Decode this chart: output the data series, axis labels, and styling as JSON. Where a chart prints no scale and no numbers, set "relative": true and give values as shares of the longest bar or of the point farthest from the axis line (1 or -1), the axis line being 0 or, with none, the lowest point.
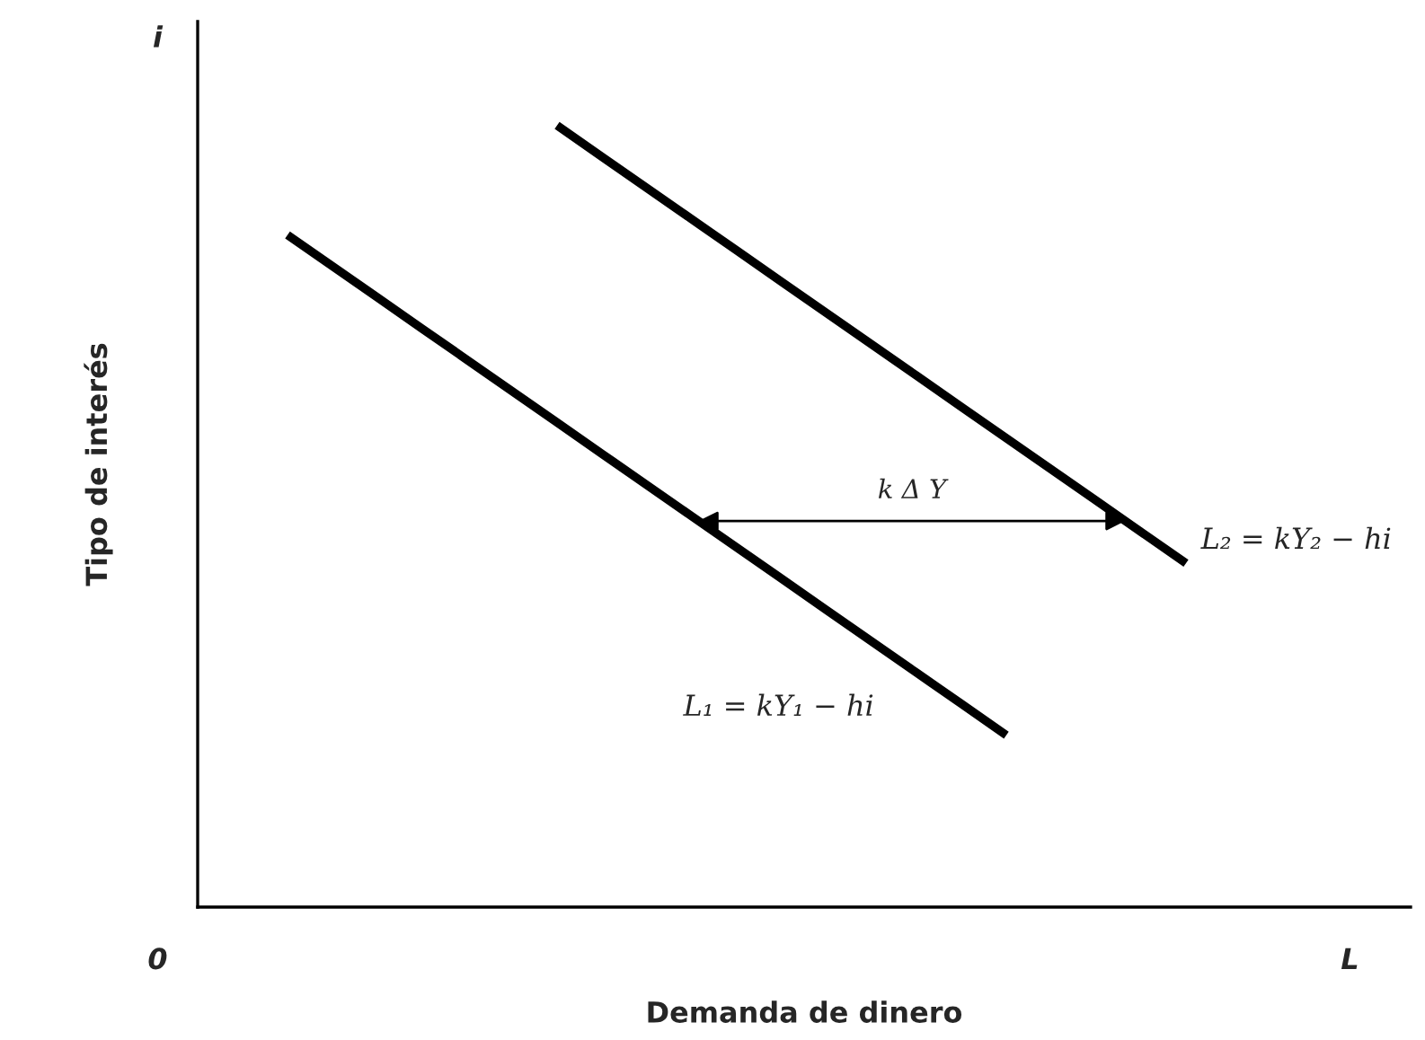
{
  "chart_data": {
    "type": "line",
    "relative": true,
    "xlabel": "Demanda de dinero",
    "ylabel": "Tipo de interés",
    "categories": [
      null,
      null,
      null,
      null,
      null,
      null,
      null,
      null,
      null,
      null,
      null,
      null,
      null,
      null,
      null,
      null,
      null,
      null,
      null,
      null,
      null,
      null,
      null,
      null,
      null,
      null,
      null
    ],
    "series": [
      {
        "name": "L₁ = kY₁ − hi",
        "color": "#000000",
        "values": [
          null,
          null,
          0.86,
          0.82,
          0.78,
          0.74,
          0.7,
          0.66,
          0.62,
          0.58,
          0.54,
          0.5,
          0.46,
          0.42,
          0.38,
          0.34,
          0.3,
          0.26,
          0.22,
          null,
          null,
          null,
          null,
          null,
          null,
          null,
          null
        ]
      },
      {
        "name": "L₂ = kY₂ − hi",
        "color": "#000000",
        "values": [
          null,
          null,
          null,
          null,
          null,
          null,
          null,
          null,
          1.0,
          0.96,
          0.92,
          0.88,
          0.84,
          0.8,
          0.76,
          0.72,
          0.68,
          0.64,
          0.6,
          0.56,
          0.52,
          0.48,
          0.44,
          null,
          null,
          null,
          null
        ]
      }
    ],
    "annotations": [
      "i",
      "0",
      "L",
      "k Δ Y"
    ]
  }
}
